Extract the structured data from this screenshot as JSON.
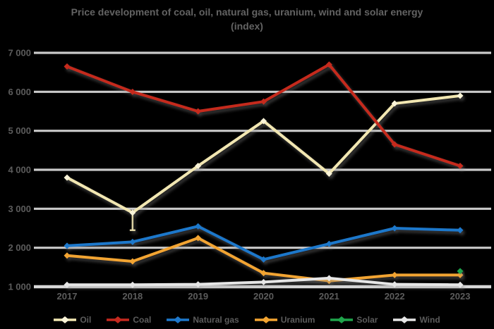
{
  "title": {
    "line1": "Price development of coal, oil, natural gas, uranium, wind and solar energy",
    "line2": "(index)"
  },
  "colors": {
    "background": "#000000",
    "grid": "#D5D5D5",
    "grid_bottom": "#E4E4E4",
    "axis_text": "#5c5c5c",
    "title_text": "#636363",
    "shadow": "#8a8a8a"
  },
  "chart_data": {
    "type": "line",
    "title": "Price development of coal, oil, natural gas, uranium, wind and solar energy (index)",
    "categories": [
      "2017",
      "2018",
      "2019",
      "2020",
      "2021",
      "2022",
      "2023"
    ],
    "y_tick_labels": [
      "7 000",
      "6 000",
      "5 000",
      "4 000",
      "3 000",
      "2 000",
      "1 000"
    ],
    "ylim": [
      1000,
      7000
    ],
    "grid": true,
    "legend_position": "bottom",
    "series": [
      {
        "name": "Oil",
        "color": "#F2E7B2",
        "marker_color": "#FAF4D8",
        "values": [
          3800,
          2900,
          4100,
          5250,
          3900,
          5700,
          5900
        ],
        "error_down": {
          "index": 1,
          "to": 2450
        }
      },
      {
        "name": "Coal",
        "color": "#C5291F",
        "marker_color": "#C5291F",
        "values": [
          6650,
          6000,
          5500,
          5750,
          6700,
          4650,
          4100
        ]
      },
      {
        "name": "Natural gas",
        "color": "#1E78CB",
        "marker_color": "#1E78CB",
        "values": [
          2050,
          2150,
          2550,
          1700,
          2100,
          2500,
          2450
        ]
      },
      {
        "name": "Uranium",
        "color": "#F2A431",
        "marker_color": "#F2A431",
        "values": [
          1800,
          1650,
          2250,
          1350,
          1150,
          1300,
          1300
        ]
      },
      {
        "name": "Solar",
        "color": "#1FA44B",
        "marker_color": "#1FA44B",
        "values": [
          null,
          null,
          null,
          null,
          null,
          null,
          1400
        ]
      },
      {
        "name": "Wind",
        "color": "#E6E6E6",
        "marker_color": "#E6E6E6",
        "values": [
          1050,
          1050,
          1060,
          1120,
          1220,
          1060,
          1050
        ]
      }
    ]
  }
}
